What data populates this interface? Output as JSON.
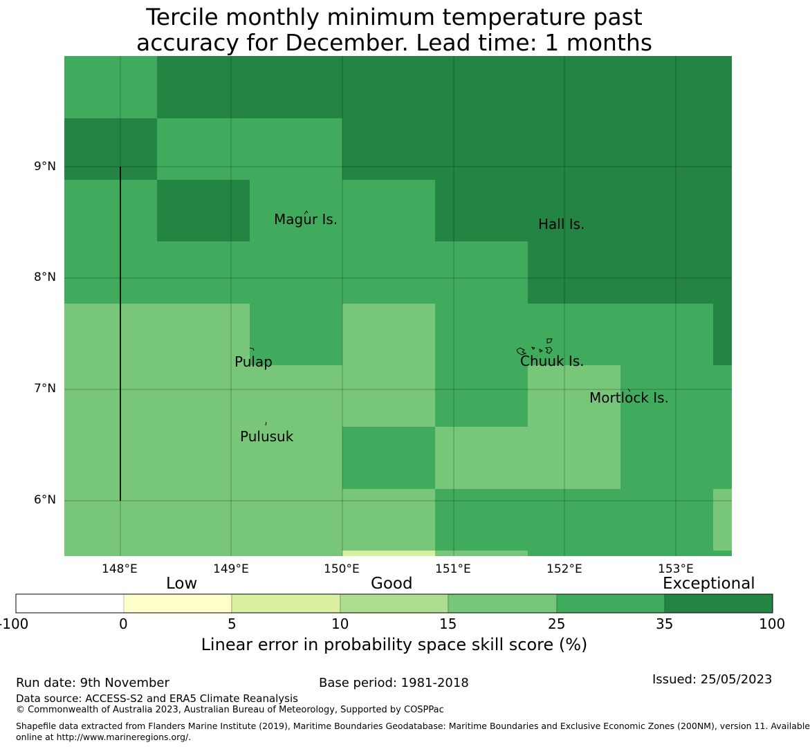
{
  "title_line1": "Tercile monthly minimum temperature past",
  "title_line2": "accuracy for December. Lead time: 1 months",
  "map": {
    "lat_labels": [
      "9°N",
      "8°N",
      "7°N",
      "6°N"
    ],
    "lon_labels": [
      "148°E",
      "149°E",
      "150°E",
      "151°E",
      "152°E",
      "153°E"
    ],
    "places": [
      {
        "name": "Magur Is."
      },
      {
        "name": "Hall Is."
      },
      {
        "name": "Pulap"
      },
      {
        "name": "Chuuk Is."
      },
      {
        "name": "Mortlock Is."
      },
      {
        "name": "Pulusuk"
      }
    ],
    "colors": {
      "c0_5": "#ffffcc",
      "c5_10": "#d9f0a3",
      "c10_15": "#addd8e",
      "c15_25": "#78c679",
      "c25_35": "#41ab5d",
      "c35_100": "#238443"
    }
  },
  "colorbar": {
    "categories": [
      "Low",
      "Good",
      "Exceptional"
    ],
    "ticks": [
      "-100",
      "0",
      "5",
      "10",
      "15",
      "25",
      "35",
      "100"
    ],
    "colors": [
      "#ffffff",
      "#ffffcc",
      "#d9f0a3",
      "#addd8e",
      "#78c679",
      "#41ab5d",
      "#238443"
    ],
    "title": "Linear error in probability space skill score (%)"
  },
  "footer": {
    "run_date": "Run date: 9th November",
    "base_period": "Base period: 1981-2018",
    "issued": "Issued: 25/05/2023",
    "data_source": "Data source: ACCESS-S2 and ERA5 Climate Reanalysis",
    "copyright": "© Commonwealth of Australia 2023, Australian Bureau of Meteorology, Supported by COSPPac",
    "shapefile_line1": "Shapefile data extracted from Flanders Marine Institute (2019), Maritime Boundaries Geodatabase: Maritime Boundaries and Exclusive Economic Zones (200NM), version 11. Available",
    "shapefile_line2": "online at http://www.marineregions.org/."
  }
}
